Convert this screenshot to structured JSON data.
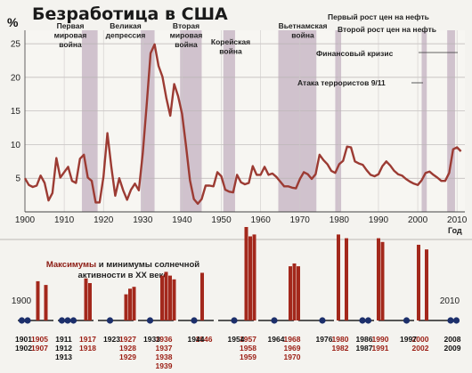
{
  "chart_data": [
    {
      "type": "line",
      "title": "Безработица в США",
      "ylabel": "%",
      "xlabel": "Год",
      "xlim": [
        1900,
        2012
      ],
      "ylim": [
        0,
        27
      ],
      "xticks": [
        "1900",
        "1910",
        "1920",
        "1930",
        "1940",
        "1950",
        "1960",
        "1970",
        "1980",
        "1990",
        "2000",
        "2010"
      ],
      "yticks": [
        "5",
        "10",
        "15",
        "20",
        "25"
      ],
      "grid": true,
      "line_color": "#9c3b33",
      "shade_color": "#c9b9c7",
      "shaded_periods": [
        {
          "label": "Первая мировая война",
          "from": 1914.5,
          "to": 1918.5
        },
        {
          "label": "Великая депрессия",
          "from": 1929.5,
          "to": 1933
        },
        {
          "label": "Вторая мировая война",
          "from": 1939.5,
          "to": 1945
        },
        {
          "label": "Корейская война",
          "from": 1950.5,
          "to": 1953.5
        },
        {
          "label": "Вьетнамская война",
          "from": 1964.5,
          "to": 1973
        },
        {
          "label": "Первый рост цен на нефть",
          "from": 1973,
          "to": 1974.2
        },
        {
          "label": "Второй рост цен на нефть",
          "from": 1979,
          "to": 1980.5
        },
        {
          "label": "Финансовый кризис",
          "from": 2007.5,
          "to": 2009.5
        },
        {
          "label": "Атака террористов 9/11",
          "from": 2001,
          "to": 2002.3
        }
      ],
      "series": [
        {
          "x": [
            1900,
            1901,
            1902,
            1903,
            1904,
            1905,
            1906,
            1907,
            1908,
            1909,
            1910,
            1911,
            1912,
            1913,
            1914,
            1915,
            1916,
            1917,
            1918,
            1919,
            1920,
            1921,
            1922,
            1923,
            1924,
            1925,
            1926,
            1927,
            1928,
            1929,
            1930,
            1931,
            1932,
            1933,
            1934,
            1935,
            1936,
            1937,
            1938,
            1939,
            1940,
            1941,
            1942,
            1943,
            1944,
            1945,
            1946,
            1947,
            1948,
            1949,
            1950,
            1951,
            1952,
            1953,
            1954,
            1955,
            1956,
            1957,
            1958,
            1959,
            1960,
            1961,
            1962,
            1963,
            1964,
            1965,
            1966,
            1967,
            1968,
            1969,
            1970,
            1971,
            1972,
            1973,
            1974,
            1975,
            1976,
            1977,
            1978,
            1979,
            1980,
            1981,
            1982,
            1983,
            1984,
            1985,
            1986,
            1987,
            1988,
            1989,
            1990,
            1991,
            1992,
            1993,
            1994,
            1995,
            1996,
            1997,
            1998,
            1999,
            2000,
            2001,
            2002,
            2003,
            2004,
            2005,
            2006,
            2007,
            2008,
            2009,
            2010,
            2011
          ],
          "values": [
            5.0,
            4.0,
            3.7,
            3.9,
            5.4,
            4.3,
            1.7,
            2.8,
            8.0,
            5.1,
            5.9,
            6.7,
            4.6,
            4.3,
            7.9,
            8.5,
            5.1,
            4.6,
            1.4,
            1.4,
            5.2,
            11.7,
            6.7,
            2.4,
            5.0,
            3.2,
            1.8,
            3.3,
            4.2,
            3.2,
            8.7,
            15.9,
            23.6,
            24.9,
            21.7,
            20.1,
            16.9,
            14.3,
            19.0,
            17.2,
            14.6,
            9.9,
            4.7,
            1.9,
            1.2,
            1.9,
            3.9,
            3.9,
            3.8,
            5.9,
            5.3,
            3.3,
            3.0,
            2.9,
            5.5,
            4.4,
            4.1,
            4.3,
            6.8,
            5.5,
            5.5,
            6.7,
            5.5,
            5.7,
            5.2,
            4.5,
            3.8,
            3.8,
            3.6,
            3.5,
            4.9,
            5.9,
            5.6,
            4.9,
            5.6,
            8.5,
            7.7,
            7.1,
            6.1,
            5.8,
            7.1,
            7.6,
            9.7,
            9.6,
            7.5,
            7.2,
            7.0,
            6.2,
            5.5,
            5.3,
            5.6,
            6.8,
            7.5,
            6.9,
            6.1,
            5.6,
            5.4,
            4.9,
            4.5,
            4.2,
            4.0,
            4.7,
            5.8,
            6.0,
            5.5,
            5.1,
            4.6,
            4.6,
            5.8,
            9.3,
            9.6,
            9.0
          ]
        }
      ]
    },
    {
      "type": "bar",
      "title": "Максимумы и минимумы солнечной активности в XX веке",
      "title_highlight": "Максимумы",
      "title_rest": "и минимумы солнечной активности в XX веке",
      "bar_color": "#a3281c",
      "dot_color": "#1c2f6b",
      "endpoints": {
        "start": "1900",
        "end": "2010"
      },
      "maxima": [
        {
          "years": [
            "1905",
            "1907"
          ],
          "heights": [
            0.42,
            0.38
          ]
        },
        {
          "years": [
            "1917",
            "1918"
          ],
          "heights": [
            0.45,
            0.4
          ]
        },
        {
          "years": [
            "1927",
            "1928",
            "1929"
          ],
          "heights": [
            0.28,
            0.34,
            0.36
          ]
        },
        {
          "years": [
            "1936",
            "1937",
            "1938",
            "1939"
          ],
          "heights": [
            0.48,
            0.52,
            0.48,
            0.44
          ]
        },
        {
          "years": [
            "1946"
          ],
          "heights": [
            0.51
          ]
        },
        {
          "years": [
            "1957",
            "1958",
            "1959"
          ],
          "heights": [
            1.0,
            0.9,
            0.92
          ]
        },
        {
          "years": [
            "1968",
            "1969",
            "1970"
          ],
          "heights": [
            0.58,
            0.61,
            0.58
          ]
        },
        {
          "years": [
            "1980",
            "1982"
          ],
          "heights": [
            0.92,
            0.88
          ]
        },
        {
          "years": [
            "1990",
            "1991"
          ],
          "heights": [
            0.88,
            0.84
          ]
        },
        {
          "years": [
            "2000",
            "2002"
          ],
          "heights": [
            0.81,
            0.76
          ]
        }
      ],
      "minima": [
        {
          "years": [
            "1901",
            "1902"
          ]
        },
        {
          "years": [
            "1911",
            "1912",
            "1913"
          ]
        },
        {
          "years": [
            "1923"
          ]
        },
        {
          "years": [
            "1933"
          ]
        },
        {
          "years": [
            "1944"
          ]
        },
        {
          "years": [
            "1954"
          ]
        },
        {
          "years": [
            "1964"
          ]
        },
        {
          "years": [
            "1976"
          ]
        },
        {
          "years": [
            "1986",
            "1987"
          ]
        },
        {
          "years": [
            "1997"
          ]
        },
        {
          "years": [
            "2008",
            "2009"
          ]
        }
      ]
    }
  ]
}
